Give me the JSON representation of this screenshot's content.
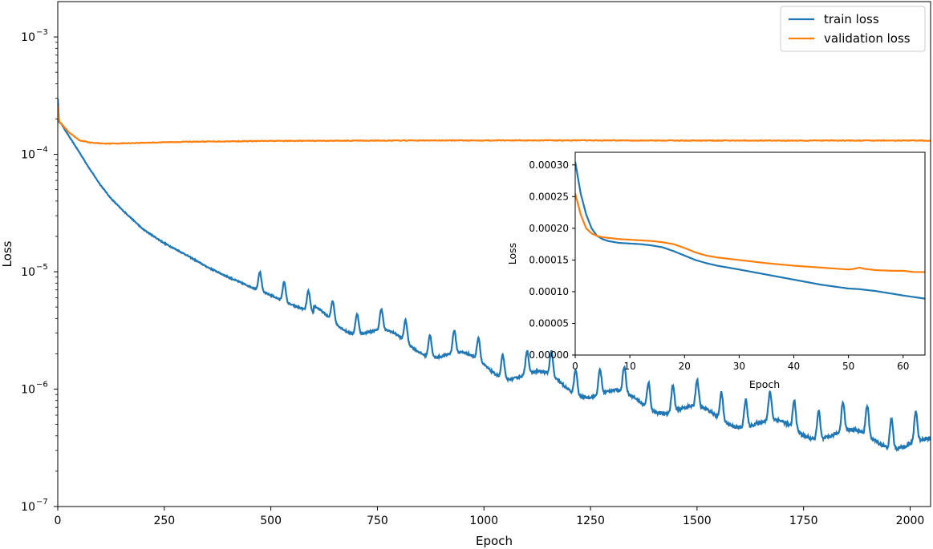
{
  "chart_data": [
    {
      "type": "line",
      "xlabel": "Epoch",
      "ylabel": "Loss",
      "yscale": "log",
      "xlim": [
        0,
        2048
      ],
      "ylim": [
        1e-07,
        0.002
      ],
      "x_ticks": [
        0,
        250,
        500,
        750,
        1000,
        1250,
        1500,
        1750,
        2000
      ],
      "y_ticks": [
        {
          "value": 1e-07,
          "base": "10",
          "exp": "−7"
        },
        {
          "value": 1e-06,
          "base": "10",
          "exp": "−6"
        },
        {
          "value": 1e-05,
          "base": "10",
          "exp": "−5"
        },
        {
          "value": 0.0001,
          "base": "10",
          "exp": "−4"
        },
        {
          "value": 0.001,
          "base": "10",
          "exp": "−3"
        }
      ],
      "grid": false,
      "legend": "top-right",
      "series": [
        {
          "name": "train loss",
          "color": "#1f77b4",
          "x": [
            0,
            3,
            10,
            25,
            50,
            75,
            100,
            125,
            150,
            175,
            200,
            250,
            300,
            350,
            400,
            450,
            500,
            550,
            600,
            650,
            700,
            750,
            800,
            850,
            900,
            950,
            1000,
            1050,
            1100,
            1150,
            1200,
            1250,
            1300,
            1350,
            1400,
            1450,
            1500,
            1550,
            1600,
            1650,
            1700,
            1750,
            1800,
            1850,
            1900,
            1950,
            2000,
            2048
          ],
          "y": [
            0.0003,
            0.00019,
            0.000178,
            0.000145,
            0.000105,
            7.5e-05,
            5.5e-05,
            4.2e-05,
            3.4e-05,
            2.8e-05,
            2.3e-05,
            1.75e-05,
            1.4e-05,
            1.1e-05,
            9e-06,
            7.5e-06,
            6.3e-06,
            5.2e-06,
            4.5e-06,
            3.9e-06,
            3.3e-06,
            2.9e-06,
            2.6e-06,
            2.3e-06,
            2e-06,
            1.8e-06,
            1.6e-06,
            1.4e-06,
            1.3e-06,
            1.2e-06,
            1.05e-06,
            9.5e-07,
            8.8e-07,
            8e-07,
            7.3e-07,
            6.8e-07,
            6.2e-07,
            5.8e-07,
            5.4e-07,
            5e-07,
            4.7e-07,
            4.4e-07,
            4.2e-07,
            4e-07,
            3.8e-07,
            3.6e-07,
            3.5e-07,
            3.3e-07
          ]
        },
        {
          "name": "validation loss",
          "color": "#ff7f0e",
          "x": [
            0,
            3,
            10,
            25,
            50,
            75,
            100,
            125,
            150,
            200,
            300,
            500,
            750,
            1000,
            1250,
            1500,
            1750,
            2000,
            2048
          ],
          "y": [
            0.00026,
            0.00019,
            0.00018,
            0.000155,
            0.000132,
            0.000126,
            0.000124,
            0.0001235,
            0.000124,
            0.0001255,
            0.000128,
            0.00013,
            0.000131,
            0.0001315,
            0.0001315,
            0.000131,
            0.000131,
            0.000131,
            0.000131
          ]
        }
      ]
    },
    {
      "type": "line",
      "xlabel": "Epoch",
      "ylabel": "Loss",
      "yscale": "linear",
      "xlim": [
        0,
        64
      ],
      "ylim": [
        0,
        0.00032
      ],
      "x_ticks": [
        0,
        10,
        20,
        30,
        40,
        50,
        60
      ],
      "y_ticks": [
        "0.00000",
        "0.00005",
        "0.00010",
        "0.00015",
        "0.00020",
        "0.00025",
        "0.00030"
      ],
      "grid": false,
      "series": [
        {
          "color": "#1f77b4",
          "x": [
            0,
            1,
            2,
            3,
            4,
            5,
            6,
            8,
            10,
            12,
            14,
            16,
            18,
            20,
            22,
            24,
            26,
            28,
            30,
            35,
            40,
            45,
            50,
            52,
            55,
            60,
            64
          ],
          "y": [
            0.000305,
            0.000255,
            0.000222,
            0.0002,
            0.000188,
            0.000183,
            0.00018,
            0.000177,
            0.000176,
            0.000175,
            0.000173,
            0.00017,
            0.000164,
            0.000157,
            0.00015,
            0.000145,
            0.000141,
            0.000138,
            0.000135,
            0.000127,
            0.000119,
            0.000111,
            0.000105,
            0.000104,
            0.000101,
            9.4e-05,
            8.9e-05
          ]
        },
        {
          "color": "#ff7f0e",
          "x": [
            0,
            1,
            2,
            3,
            4,
            5,
            6,
            8,
            10,
            12,
            14,
            16,
            18,
            20,
            22,
            24,
            26,
            28,
            30,
            35,
            40,
            45,
            50,
            51,
            52,
            53,
            55,
            58,
            60,
            62,
            64
          ],
          "y": [
            0.000255,
            0.000222,
            0.0002,
            0.000192,
            0.000188,
            0.000186,
            0.000185,
            0.000183,
            0.000182,
            0.000181,
            0.00018,
            0.000178,
            0.000175,
            0.000169,
            0.000162,
            0.000157,
            0.000154,
            0.000152,
            0.00015,
            0.000145,
            0.000141,
            0.000138,
            0.000135,
            0.000136,
            0.000138,
            0.000136,
            0.000134,
            0.000133,
            0.000133,
            0.000131,
            0.000131
          ]
        }
      ]
    }
  ]
}
